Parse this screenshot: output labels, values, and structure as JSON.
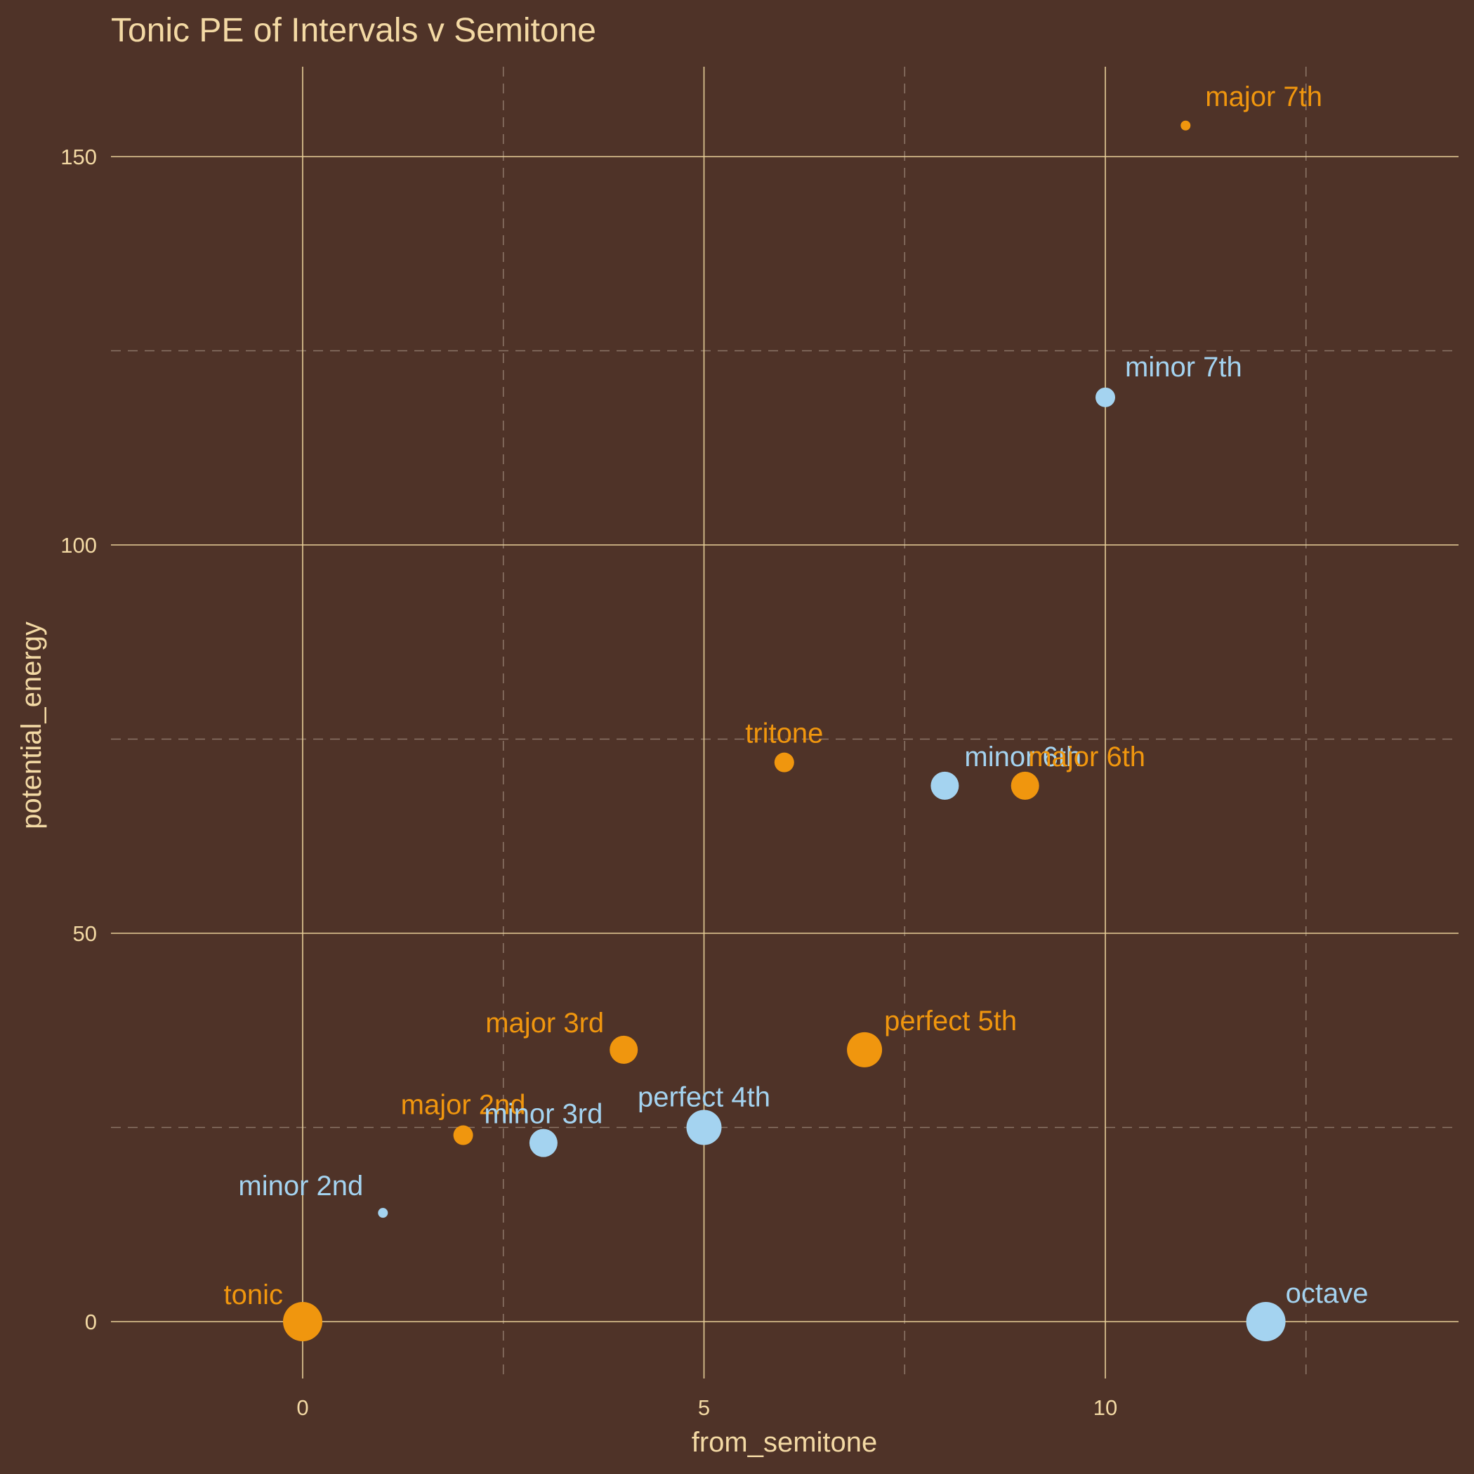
{
  "chart_data": {
    "type": "scatter",
    "title": "Tonic PE of Intervals v Semitone",
    "xlabel": "from_semitone",
    "ylabel": "potential_energy",
    "xlim": [
      -2.4,
      14.4
    ],
    "ylim": [
      -10,
      161
    ],
    "x_ticks": [
      0,
      5,
      10
    ],
    "y_ticks": [
      0,
      50,
      100,
      150
    ],
    "x_minor_grid": [
      2.5,
      7.5,
      12.5
    ],
    "y_minor_grid": [
      25,
      75,
      125
    ],
    "grid": true,
    "colors": {
      "background": "#4f3328",
      "text": "#f3d9a4",
      "major_grid": "#e8cf98",
      "minor_grid": "#8a7466",
      "orange": "#f0960e",
      "blue": "#a4d3f0"
    },
    "points": [
      {
        "label": "tonic",
        "x": 0,
        "y": 0,
        "color": "orange",
        "size": 5
      },
      {
        "label": "minor 2nd",
        "x": 1,
        "y": 14,
        "color": "blue",
        "size": 1
      },
      {
        "label": "major 2nd",
        "x": 2,
        "y": 24,
        "color": "orange",
        "size": 2
      },
      {
        "label": "minor 3rd",
        "x": 3,
        "y": 23,
        "color": "blue",
        "size": 3
      },
      {
        "label": "major 3rd",
        "x": 4,
        "y": 35,
        "color": "orange",
        "size": 3
      },
      {
        "label": "perfect 4th",
        "x": 5,
        "y": 25,
        "color": "blue",
        "size": 4
      },
      {
        "label": "tritone",
        "x": 6,
        "y": 72,
        "color": "orange",
        "size": 2
      },
      {
        "label": "perfect 5th",
        "x": 7,
        "y": 35,
        "color": "orange",
        "size": 4
      },
      {
        "label": "minor 6th",
        "x": 8,
        "y": 69,
        "color": "blue",
        "size": 3
      },
      {
        "label": "major 6th",
        "x": 9,
        "y": 69,
        "color": "orange",
        "size": 3
      },
      {
        "label": "minor 7th",
        "x": 10,
        "y": 119,
        "color": "blue",
        "size": 2
      },
      {
        "label": "major 7th",
        "x": 11,
        "y": 154,
        "color": "orange",
        "size": 1
      },
      {
        "label": "octave",
        "x": 12,
        "y": 0,
        "color": "blue",
        "size": 5
      }
    ]
  }
}
